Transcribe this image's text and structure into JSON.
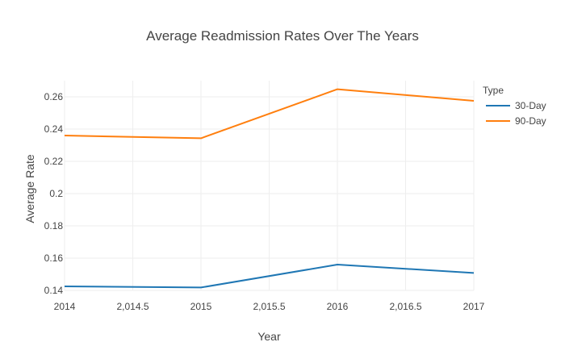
{
  "chart_data": {
    "type": "line",
    "title": "Average Readmission Rates Over The Years",
    "xlabel": "Year",
    "ylabel": "Average Rate",
    "x": [
      2014,
      2015,
      2016,
      2017
    ],
    "xlim": [
      2014,
      2017
    ],
    "ylim": [
      0.14,
      0.27
    ],
    "x_ticks": [
      2014,
      2014.5,
      2015,
      2015.5,
      2016,
      2016.5,
      2017
    ],
    "x_tick_labels": [
      "2014",
      "2,014.5",
      "2015",
      "2,015.5",
      "2016",
      "2,016.5",
      "2017"
    ],
    "y_ticks": [
      0.14,
      0.16,
      0.18,
      0.2,
      0.22,
      0.24,
      0.26
    ],
    "y_tick_labels": [
      "0.14",
      "0.16",
      "0.18",
      "0.2",
      "0.22",
      "0.24",
      "0.26"
    ],
    "grid": true,
    "legend": {
      "title": "Type",
      "placement": "right"
    },
    "series": [
      {
        "name": "30-Day",
        "color": "#1f77b4",
        "values": [
          0.1425,
          0.1418,
          0.156,
          0.1508
        ]
      },
      {
        "name": "90-Day",
        "color": "#ff7f0e",
        "values": [
          0.236,
          0.2343,
          0.2647,
          0.2575
        ]
      }
    ]
  }
}
